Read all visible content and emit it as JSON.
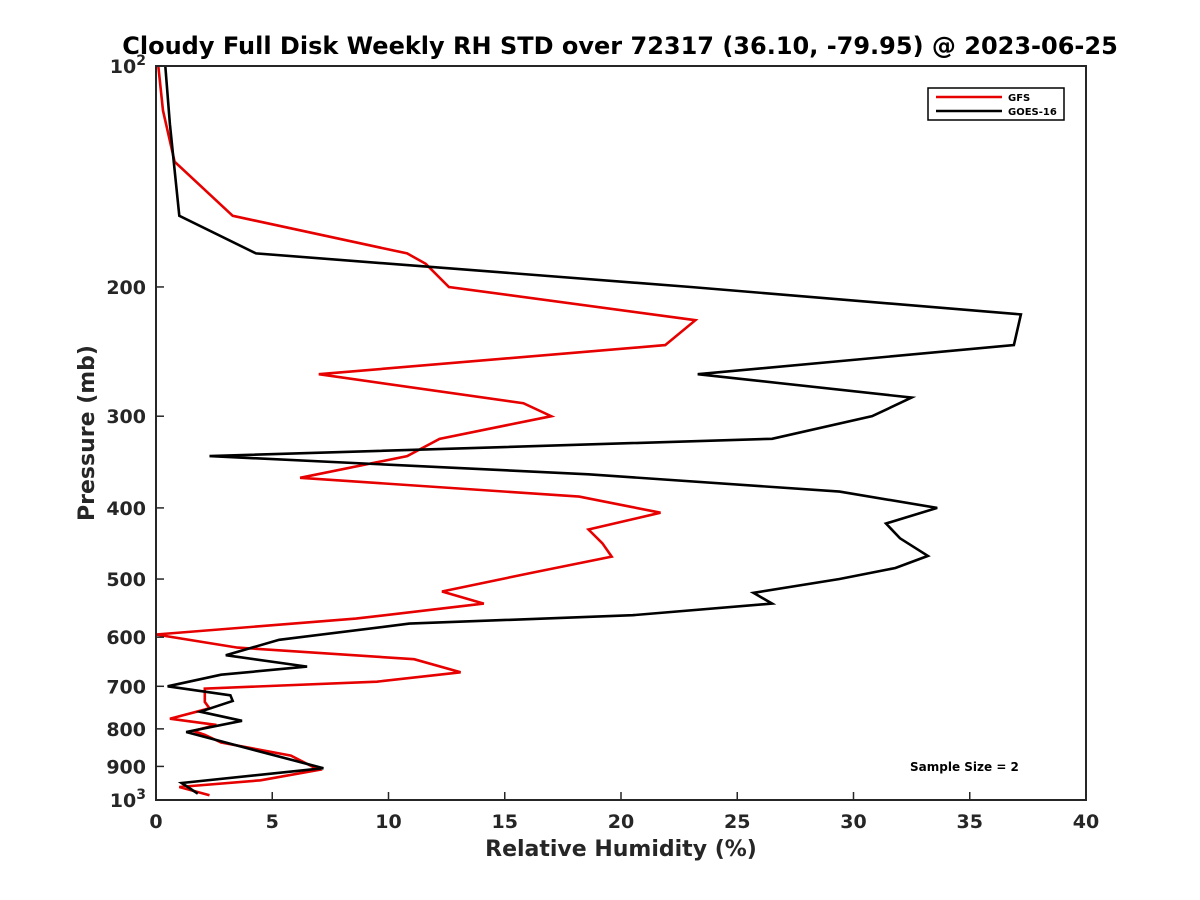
{
  "chart_data": {
    "type": "line",
    "title": "Cloudy Full Disk Weekly RH STD over 72317 (36.10, -79.95) @ 2023-06-25",
    "xlabel": "Relative Humidity (%)",
    "ylabel": "Pressure (mb)",
    "xlim": [
      0,
      40
    ],
    "ylim": [
      100,
      1000
    ],
    "yscale": "log",
    "y_reversed": true,
    "x_ticks": [
      "0",
      "5",
      "10",
      "15",
      "20",
      "25",
      "30",
      "35",
      "40"
    ],
    "y_ticks": [
      {
        "value": 100,
        "label": "10",
        "sup": "2"
      },
      {
        "value": 200,
        "label": "200",
        "sup": ""
      },
      {
        "value": 300,
        "label": "300",
        "sup": ""
      },
      {
        "value": 400,
        "label": "400",
        "sup": ""
      },
      {
        "value": 500,
        "label": "500",
        "sup": ""
      },
      {
        "value": 600,
        "label": "600",
        "sup": ""
      },
      {
        "value": 700,
        "label": "700",
        "sup": ""
      },
      {
        "value": 800,
        "label": "800",
        "sup": ""
      },
      {
        "value": 900,
        "label": "900",
        "sup": ""
      },
      {
        "value": 1000,
        "label": "10",
        "sup": "3"
      }
    ],
    "grid": false,
    "legend_position": "top-right",
    "annotation": "Sample Size = 2",
    "series": [
      {
        "name": "GFS",
        "color": "#e60000",
        "points": [
          [
            0.1,
            100
          ],
          [
            0.3,
            115
          ],
          [
            0.8,
            135
          ],
          [
            3.3,
            160
          ],
          [
            10.8,
            180
          ],
          [
            11.6,
            186
          ],
          [
            12.6,
            200
          ],
          [
            23.2,
            222
          ],
          [
            21.9,
            240
          ],
          [
            7,
            263
          ],
          [
            15.8,
            288
          ],
          [
            17,
            300
          ],
          [
            12.2,
            322
          ],
          [
            10.8,
            340
          ],
          [
            6.2,
            364
          ],
          [
            18.2,
            386
          ],
          [
            21.7,
            406
          ],
          [
            18.6,
            428
          ],
          [
            19.2,
            447
          ],
          [
            19.6,
            466
          ],
          [
            16.2,
            490
          ],
          [
            12.3,
            520
          ],
          [
            14.1,
            540
          ],
          [
            8.6,
            566
          ],
          [
            0,
            595
          ],
          [
            3.5,
            620
          ],
          [
            11.1,
            643
          ],
          [
            13.1,
            670
          ],
          [
            9.5,
            690
          ],
          [
            2.1,
            705
          ],
          [
            2.1,
            735
          ],
          [
            2.3,
            750
          ],
          [
            0.6,
            775
          ],
          [
            2.6,
            790
          ],
          [
            1.6,
            805
          ],
          [
            2.1,
            815
          ],
          [
            2.8,
            835
          ],
          [
            5.8,
            870
          ],
          [
            7,
            910
          ],
          [
            4.5,
            940
          ],
          [
            1,
            960
          ],
          [
            2.3,
            985
          ]
        ]
      },
      {
        "name": "GOES-16",
        "color": "#000000",
        "points": [
          [
            0.4,
            100
          ],
          [
            0.6,
            120
          ],
          [
            1,
            160
          ],
          [
            4.3,
            180
          ],
          [
            23,
            200
          ],
          [
            37.2,
            218
          ],
          [
            36.9,
            240
          ],
          [
            23.3,
            263
          ],
          [
            32.5,
            283
          ],
          [
            30.8,
            300
          ],
          [
            26.5,
            322
          ],
          [
            2.3,
            340
          ],
          [
            18.6,
            360
          ],
          [
            29.4,
            380
          ],
          [
            33.6,
            400
          ],
          [
            31.4,
            420
          ],
          [
            32,
            440
          ],
          [
            33.2,
            465
          ],
          [
            31.8,
            483
          ],
          [
            29.4,
            500
          ],
          [
            25.7,
            522
          ],
          [
            26.5,
            540
          ],
          [
            20.5,
            560
          ],
          [
            10.9,
            575
          ],
          [
            5.3,
            605
          ],
          [
            3,
            635
          ],
          [
            6.5,
            658
          ],
          [
            2.8,
            675
          ],
          [
            0.5,
            700
          ],
          [
            3.2,
            720
          ],
          [
            3.3,
            733
          ],
          [
            1.9,
            758
          ],
          [
            3.7,
            780
          ],
          [
            1.3,
            808
          ],
          [
            3.3,
            840
          ],
          [
            7.2,
            905
          ],
          [
            1.1,
            948
          ],
          [
            1.8,
            980
          ]
        ]
      }
    ]
  }
}
